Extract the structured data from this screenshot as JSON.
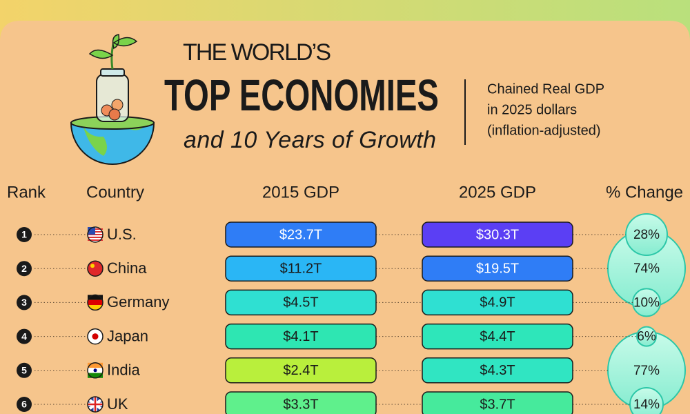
{
  "header": {
    "title_line1": "THE WORLD’S",
    "title_line2": "TOP ECONOMIES",
    "title_line3": "and 10 Years of Growth",
    "note": [
      "Chained Real GDP",
      "in 2025 dollars",
      "(inflation-adjusted)"
    ]
  },
  "table": {
    "columns": [
      "Rank",
      "Country",
      "2015 GDP",
      "2025 GDP",
      "% Change"
    ],
    "rows": [
      [
        "1",
        "U.S.",
        "$23.7T",
        "$30.3T",
        "28%"
      ],
      [
        "2",
        "China",
        "$11.2T",
        "$19.5T",
        "74%"
      ],
      [
        "3",
        "Germany",
        "$4.5T",
        "$4.9T",
        "10%"
      ],
      [
        "4",
        "Japan",
        "$4.1T",
        "$4.4T",
        "6%"
      ],
      [
        "5",
        "India",
        "$2.4T",
        "$4.3T",
        "77%"
      ],
      [
        "6",
        "UK",
        "$3.3T",
        "$3.7T",
        "14%"
      ]
    ]
  }
}
